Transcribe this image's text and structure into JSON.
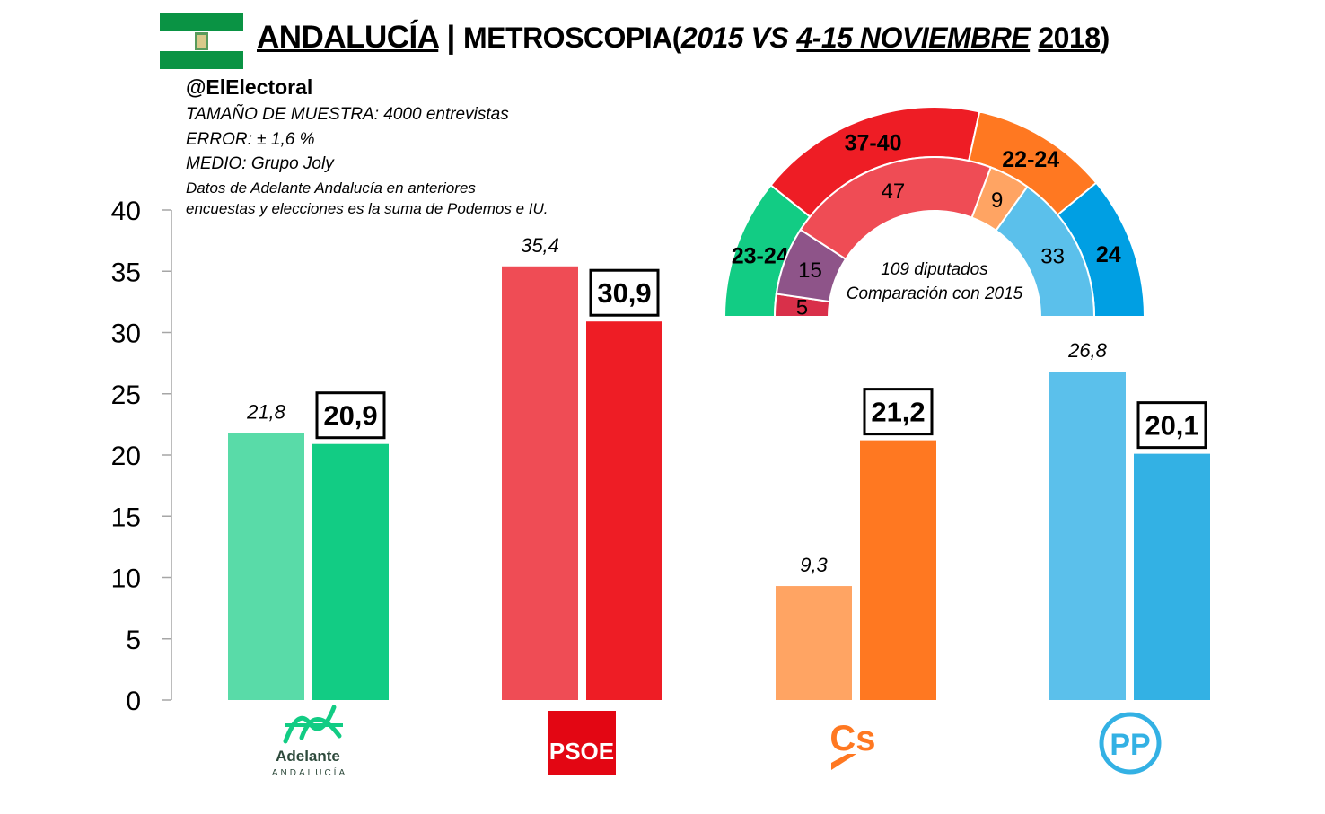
{
  "header": {
    "title_region": "ANDALUCÍA",
    "title_separator": "|",
    "title_pollster": "METROSCOPIA",
    "title_paren_open": "(",
    "title_year_prev": "2015 VS",
    "title_period": "4-15 NOVIEMBRE",
    "title_year": "2018",
    "title_paren_close": ")"
  },
  "meta": {
    "handle": "@ElElectoral",
    "sample": "TAMAÑO DE MUESTRA: 4000 entrevistas",
    "error": "ERROR: ± 1,6 %",
    "medium": "MEDIO: Grupo Joly",
    "note_line1": "Datos de Adelante Andalucía en anteriores",
    "note_line2": "encuestas y elecciones es la suma de Podemos e IU."
  },
  "colors": {
    "adelante_prev": "#59DBA8",
    "adelante_now": "#12CC84",
    "psoe_prev": "#EF4C55",
    "psoe_now": "#EE1D25",
    "cs_prev": "#FFA463",
    "cs_now": "#FF7821",
    "pp_prev": "#5BC0EB",
    "pp_now": "#33B1E4",
    "iu_prev": "#8E5489"
  },
  "chart_data": [
    {
      "type": "bar",
      "categories": [
        "Adelante Andalucía",
        "PSOE",
        "Cs",
        "PP"
      ],
      "series": [
        {
          "values": [
            21.8,
            35.4,
            9.3,
            26.8
          ],
          "labels": [
            "21,8",
            "35,4",
            "9,3",
            "26,8"
          ]
        },
        {
          "values": [
            20.9,
            30.9,
            21.2,
            20.1
          ],
          "labels": [
            "20,9",
            "30,9",
            "21,2",
            "20,1"
          ]
        }
      ],
      "yticks": [
        "0",
        "5",
        "10",
        "15",
        "20",
        "25",
        "30",
        "35",
        "40"
      ],
      "ylim": [
        0,
        40
      ]
    },
    {
      "type": "pie",
      "subtype": "parliament-semicircle",
      "caption_line1": "109 diputados",
      "caption_line2": "Comparación con 2015",
      "outer_ring": [
        {
          "party": "Adelante Andalucía",
          "label": "23-24",
          "seats": 23.5
        },
        {
          "party": "PSOE",
          "label": "37-40",
          "seats": 38.5
        },
        {
          "party": "Cs",
          "label": "22-24",
          "seats": 23
        },
        {
          "party": "PP",
          "label": "24",
          "seats": 24
        }
      ],
      "inner_ring": [
        {
          "party": "IU",
          "label": "5",
          "seats": 5
        },
        {
          "party": "Podemos",
          "label": "15",
          "seats": 15
        },
        {
          "party": "PSOE",
          "label": "47",
          "seats": 47
        },
        {
          "party": "Cs",
          "label": "9",
          "seats": 9
        },
        {
          "party": "PP",
          "label": "33",
          "seats": 33
        }
      ]
    }
  ],
  "logos": {
    "adelante_line1": "Adelante",
    "adelante_line2": "ANDALUCÍA",
    "psoe": "PSOE",
    "cs": "Cs",
    "pp": "PP"
  }
}
